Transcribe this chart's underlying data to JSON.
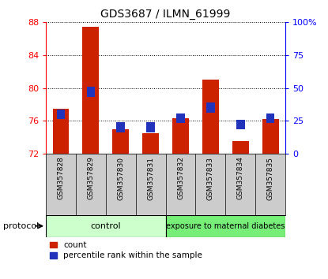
{
  "title": "GDS3687 / ILMN_61999",
  "samples": [
    "GSM357828",
    "GSM357829",
    "GSM357830",
    "GSM357831",
    "GSM357832",
    "GSM357833",
    "GSM357834",
    "GSM357835"
  ],
  "red_values": [
    77.5,
    87.5,
    75.0,
    74.5,
    76.3,
    81.0,
    73.5,
    76.2
  ],
  "blue_values": [
    30,
    47,
    20,
    20,
    27,
    35,
    22,
    27
  ],
  "ylim_left": [
    72,
    88
  ],
  "ylim_right": [
    0,
    100
  ],
  "yticks_left": [
    72,
    76,
    80,
    84,
    88
  ],
  "yticks_right": [
    0,
    25,
    50,
    75,
    100
  ],
  "yticklabels_right": [
    "0",
    "25",
    "50",
    "75",
    "100%"
  ],
  "bar_bottom": 72,
  "blue_bar_height": 1.2,
  "control_label": "control",
  "diabetes_label": "exposure to maternal diabetes",
  "protocol_label": "protocol",
  "legend_count": "count",
  "legend_percentile": "percentile rank within the sample",
  "bar_color_red": "#cc2200",
  "bar_color_blue": "#2233bb",
  "control_bg": "#ccffcc",
  "diabetes_bg": "#77ee77",
  "label_area_bg": "#cccccc",
  "fig_bg": "#ffffff"
}
